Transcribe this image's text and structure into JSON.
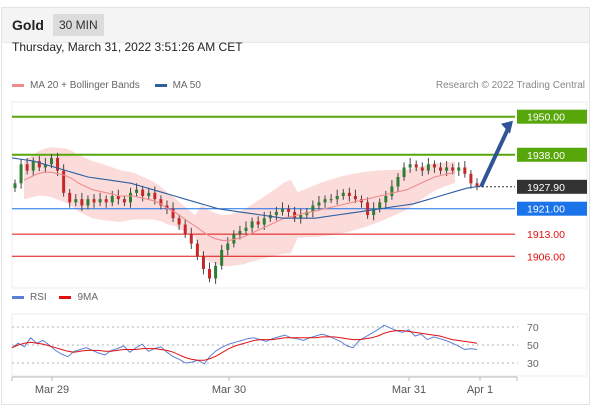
{
  "header": {
    "title": "Gold",
    "timeframe": "30 MIN"
  },
  "datetime": "Thursday, March 31, 2022 3:51:26 AM CET",
  "legend": {
    "ma20": {
      "label": "MA 20 + Bollinger Bands",
      "color": "#f08c8c"
    },
    "ma50": {
      "label": "MA 50",
      "color": "#2d5f9e"
    }
  },
  "copyright": "Research © 2022 Trading Central",
  "rsi_legend": {
    "rsi": {
      "label": "RSI",
      "color": "#5b7fd6"
    },
    "ma9": {
      "label": "9MA",
      "color": "#e01010"
    }
  },
  "chart_data": [
    {
      "type": "candlestick",
      "ylim": [
        1896,
        1954
      ],
      "levels": [
        {
          "name": "resistance",
          "value": 1950.0,
          "label": "1950.00",
          "color": "#57a60a"
        },
        {
          "name": "resistance",
          "value": 1938.0,
          "label": "1938.00",
          "color": "#57a60a"
        },
        {
          "name": "last",
          "value": 1927.9,
          "label": "1927.90",
          "color": "#333333"
        },
        {
          "name": "pivot",
          "value": 1921.0,
          "label": "1921.00",
          "color": "#1a73e8"
        },
        {
          "name": "support",
          "value": 1913.0,
          "label": "1913.00",
          "color": "#e01010"
        },
        {
          "name": "support",
          "value": 1906.0,
          "label": "1906.00",
          "color": "#e01010"
        }
      ],
      "closes": [
        1929,
        1935,
        1933,
        1936,
        1934,
        1935,
        1937,
        1933,
        1926,
        1923,
        1924,
        1922,
        1924,
        1923,
        1924,
        1923,
        1925,
        1924,
        1923,
        1926,
        1927,
        1925,
        1926,
        1924,
        1922,
        1921,
        1918,
        1916,
        1913,
        1910,
        1906,
        1902,
        1899,
        1903,
        1908,
        1910,
        1913,
        1914,
        1915,
        1917,
        1916,
        1918,
        1919,
        1920,
        1921,
        1920,
        1918,
        1919,
        1920,
        1922,
        1923,
        1924,
        1924,
        1925,
        1926,
        1925,
        1924,
        1923,
        1919,
        1921,
        1923,
        1925,
        1928,
        1931,
        1934,
        1935,
        1934,
        1933,
        1935,
        1934,
        1933,
        1934,
        1933,
        1934,
        1932,
        1929,
        1928
      ],
      "ma20": [
        1930,
        1931,
        1932,
        1932.5,
        1932.5,
        1932,
        1931.5,
        1930.5,
        1929,
        1928,
        1927,
        1926.5,
        1926,
        1925.5,
        1925,
        1925,
        1925,
        1924.5,
        1924,
        1923.5,
        1922.5,
        1921,
        1920,
        1918.5,
        1917,
        1915.5,
        1914,
        1912.5,
        1911.5,
        1911,
        1911,
        1911.5,
        1912,
        1913,
        1914,
        1915,
        1916,
        1917,
        1918,
        1918.5,
        1919,
        1919.5,
        1920,
        1920.5,
        1921,
        1921.5,
        1922,
        1922.5,
        1923,
        1923.5,
        1924,
        1924.5,
        1925,
        1925.5,
        1926,
        1926.5,
        1927,
        1928,
        1929,
        1930,
        1931,
        1931.5,
        1932,
        1932.5
      ],
      "ma50": [
        1937,
        1936.5,
        1936,
        1935,
        1934,
        1933,
        1932,
        1931,
        1930.5,
        1930,
        1929.5,
        1929,
        1928,
        1927,
        1926,
        1925,
        1924,
        1923,
        1922,
        1921,
        1920.5,
        1920,
        1919.5,
        1919,
        1918.5,
        1918,
        1918,
        1918,
        1918,
        1918.5,
        1919,
        1919.5,
        1920,
        1920.5,
        1921,
        1921.5,
        1922,
        1922.5,
        1923.5,
        1924.5,
        1925.5,
        1926.5,
        1927.5,
        1928
      ]
    },
    {
      "type": "line",
      "ylim": [
        20,
        80
      ],
      "ticks": [
        70,
        50,
        30
      ],
      "series": [
        {
          "name": "RSI",
          "values": [
            47,
            52,
            48,
            58,
            52,
            55,
            50,
            44,
            40,
            37,
            43,
            45,
            47,
            44,
            41,
            39,
            44,
            46,
            49,
            42,
            47,
            51,
            43,
            46,
            48,
            42,
            37,
            34,
            30,
            31,
            33,
            29,
            38,
            44,
            48,
            51,
            53,
            55,
            57,
            58,
            56,
            54,
            57,
            59,
            61,
            58,
            57,
            55,
            58,
            60,
            62,
            60,
            57,
            54,
            49,
            47,
            55,
            59,
            63,
            67,
            72,
            69,
            66,
            64,
            67,
            60,
            62,
            56,
            59,
            57,
            55,
            52,
            49,
            45,
            46,
            45
          ]
        },
        {
          "name": "9MA",
          "values": [
            47,
            50,
            52,
            53,
            52,
            51,
            49,
            47,
            45,
            43,
            42,
            43,
            44,
            44,
            44,
            43,
            43,
            44,
            45,
            45,
            45,
            46,
            46,
            46,
            45,
            44,
            42,
            39,
            36,
            34,
            33,
            33,
            35,
            38,
            42,
            46,
            49,
            51,
            53,
            55,
            56,
            56,
            56,
            57,
            58,
            58,
            58,
            58,
            58,
            58,
            59,
            59,
            59,
            58,
            57,
            56,
            56,
            57,
            58,
            60,
            63,
            65,
            66,
            66,
            65,
            64,
            63,
            62,
            61,
            60,
            58,
            56,
            55,
            54,
            53,
            52
          ]
        }
      ]
    },
    {
      "type": "axis",
      "ticks": [
        "Mar 29",
        "Mar 30",
        "Mar 31",
        "Apr 1"
      ]
    }
  ]
}
